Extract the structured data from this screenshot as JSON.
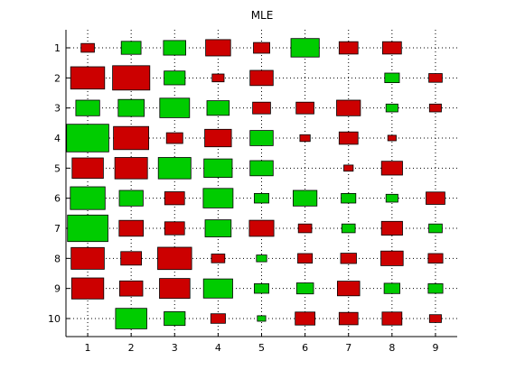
{
  "chart_data": {
    "type": "heatmap",
    "title": "MLE",
    "xlabel": "",
    "ylabel": "",
    "x_ticks": [
      "1",
      "2",
      "3",
      "4",
      "5",
      "6",
      "7",
      "8",
      "9"
    ],
    "y_ticks": [
      "1",
      "2",
      "3",
      "4",
      "5",
      "6",
      "7",
      "8",
      "9",
      "10"
    ],
    "xlim": [
      0.5,
      9.5
    ],
    "ylim": [
      0.4,
      10.6
    ],
    "y_direction": "reversed",
    "grid": true,
    "encoding": "Hinton diagram: square size = magnitude, green = positive, red = negative",
    "colors": {
      "positive": "#00cc00",
      "negative": "#cc0000"
    },
    "rows": [
      [
        -0.1,
        0.22,
        0.28,
        -0.35,
        -0.15,
        0.45,
        -0.2,
        -0.2,
        0
      ],
      [
        -0.65,
        -0.78,
        0.25,
        -0.08,
        -0.3,
        0,
        0,
        0.12,
        -0.1
      ],
      [
        0.32,
        0.38,
        0.5,
        0.28,
        -0.18,
        -0.18,
        -0.32,
        0.08,
        -0.08
      ],
      [
        1.0,
        -0.7,
        -0.15,
        -0.4,
        0.3,
        -0.06,
        -0.2,
        -0.04,
        0
      ],
      [
        -0.55,
        -0.6,
        0.6,
        0.45,
        0.3,
        0,
        -0.05,
        -0.25,
        0
      ],
      [
        0.68,
        0.32,
        -0.22,
        0.5,
        0.12,
        0.32,
        0.12,
        0.08,
        -0.2
      ],
      [
        0.92,
        -0.33,
        -0.22,
        0.38,
        -0.34,
        -0.1,
        0.1,
        -0.25,
        0.1
      ],
      [
        -0.62,
        -0.24,
        -0.65,
        -0.1,
        0.06,
        -0.12,
        -0.14,
        -0.28,
        -0.12
      ],
      [
        -0.58,
        -0.3,
        -0.52,
        0.48,
        0.12,
        0.16,
        -0.28,
        0.14,
        0.12
      ],
      [
        0,
        0.55,
        0.25,
        -0.12,
        0.04,
        -0.22,
        -0.2,
        -0.22,
        -0.08
      ]
    ]
  }
}
